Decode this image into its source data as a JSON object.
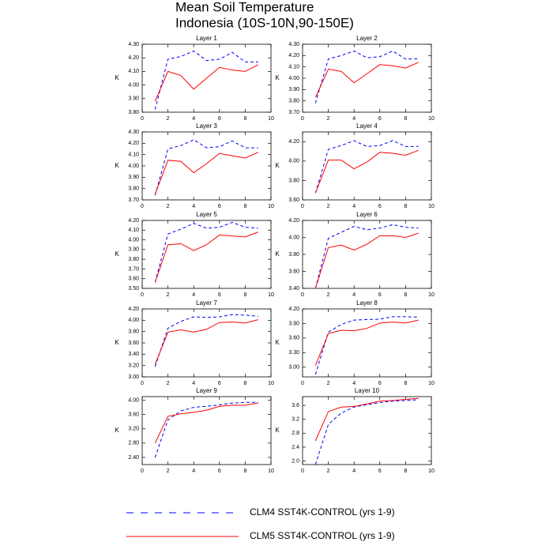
{
  "title": [
    "Mean Soil Temperature",
    "Indonesia (10S-10N,90-150E)"
  ],
  "legend": [
    {
      "name": "CLM4 SST4K-CONTROL (yrs 1-9)",
      "color": "#0000ff",
      "dash": true
    },
    {
      "name": "CLM5 SST4K-CONTROL (yrs 1-9)",
      "color": "#ff0000",
      "dash": false
    }
  ],
  "chart_data": [
    {
      "type": "line",
      "title": "Layer 1",
      "ylabel": "K",
      "x": [
        1,
        2,
        3,
        4,
        5,
        6,
        7,
        8,
        9
      ],
      "xlim": [
        0,
        10
      ],
      "xticks": [
        0,
        2,
        4,
        6,
        8,
        10
      ],
      "ylim": [
        3.8,
        4.3
      ],
      "yticks": [
        {
          "value": 3.8,
          "label": "3.80"
        },
        {
          "value": 3.9,
          "label": "3.90"
        },
        {
          "value": 4.0,
          "label": "4.00"
        },
        {
          "value": 4.1,
          "label": "4.10"
        },
        {
          "value": 4.2,
          "label": "4.20"
        },
        {
          "value": 4.3,
          "label": "4.30"
        }
      ],
      "series": [
        {
          "values": [
            3.82,
            4.19,
            4.21,
            4.25,
            4.18,
            4.19,
            4.24,
            4.17,
            4.17
          ]
        },
        {
          "values": [
            3.88,
            4.1,
            4.07,
            3.97,
            4.05,
            4.13,
            4.11,
            4.1,
            4.15
          ]
        }
      ]
    },
    {
      "type": "line",
      "title": "Layer 2",
      "ylabel": "K",
      "x": [
        1,
        2,
        3,
        4,
        5,
        6,
        7,
        8,
        9
      ],
      "xlim": [
        0,
        10
      ],
      "xticks": [
        0,
        2,
        4,
        6,
        8,
        10
      ],
      "ylim": [
        3.7,
        4.3
      ],
      "yticks": [
        {
          "value": 3.7,
          "label": "3.70"
        },
        {
          "value": 3.8,
          "label": "3.80"
        },
        {
          "value": 3.9,
          "label": "3.90"
        },
        {
          "value": 4.0,
          "label": "4.00"
        },
        {
          "value": 4.1,
          "label": "4.10"
        },
        {
          "value": 4.2,
          "label": "4.20"
        },
        {
          "value": 4.3,
          "label": "4.30"
        }
      ],
      "series": [
        {
          "values": [
            3.78,
            4.17,
            4.2,
            4.24,
            4.18,
            4.19,
            4.24,
            4.17,
            4.17
          ]
        },
        {
          "values": [
            3.83,
            4.08,
            4.06,
            3.96,
            4.04,
            4.12,
            4.11,
            4.09,
            4.14
          ]
        }
      ]
    },
    {
      "type": "line",
      "title": "Layer 3",
      "ylabel": "K",
      "x": [
        1,
        2,
        3,
        4,
        5,
        6,
        7,
        8,
        9
      ],
      "xlim": [
        0,
        10
      ],
      "xticks": [
        0,
        2,
        4,
        6,
        8,
        10
      ],
      "ylim": [
        3.7,
        4.3
      ],
      "yticks": [
        {
          "value": 3.7,
          "label": "3.70"
        },
        {
          "value": 3.8,
          "label": "3.80"
        },
        {
          "value": 3.9,
          "label": "3.90"
        },
        {
          "value": 4.0,
          "label": "4.00"
        },
        {
          "value": 4.1,
          "label": "4.10"
        },
        {
          "value": 4.2,
          "label": "4.20"
        },
        {
          "value": 4.3,
          "label": "4.30"
        }
      ],
      "series": [
        {
          "values": [
            3.74,
            4.15,
            4.18,
            4.23,
            4.16,
            4.17,
            4.22,
            4.16,
            4.16
          ]
        },
        {
          "values": [
            3.75,
            4.05,
            4.04,
            3.94,
            4.02,
            4.11,
            4.09,
            4.07,
            4.12
          ]
        }
      ]
    },
    {
      "type": "line",
      "title": "Layer 4",
      "ylabel": "K",
      "x": [
        1,
        2,
        3,
        4,
        5,
        6,
        7,
        8,
        9
      ],
      "xlim": [
        0,
        10
      ],
      "xticks": [
        0,
        2,
        4,
        6,
        8,
        10
      ],
      "ylim": [
        3.6,
        4.3
      ],
      "yticks": [
        {
          "value": 3.6,
          "label": "3.60"
        },
        {
          "value": 3.8,
          "label": "3.80"
        },
        {
          "value": 4.0,
          "label": "4.00"
        },
        {
          "value": 4.2,
          "label": "4.20"
        }
      ],
      "series": [
        {
          "values": [
            3.67,
            4.12,
            4.16,
            4.21,
            4.15,
            4.16,
            4.21,
            4.15,
            4.15
          ]
        },
        {
          "values": [
            3.67,
            4.01,
            4.01,
            3.92,
            3.99,
            4.09,
            4.08,
            4.06,
            4.11
          ]
        }
      ]
    },
    {
      "type": "line",
      "title": "Layer 5",
      "ylabel": "K",
      "x": [
        1,
        2,
        3,
        4,
        5,
        6,
        7,
        8,
        9
      ],
      "xlim": [
        0,
        10
      ],
      "xticks": [
        0,
        2,
        4,
        6,
        8,
        10
      ],
      "ylim": [
        3.5,
        4.2
      ],
      "yticks": [
        {
          "value": 3.5,
          "label": "3.50"
        },
        {
          "value": 3.6,
          "label": "3.60"
        },
        {
          "value": 3.7,
          "label": "3.70"
        },
        {
          "value": 3.8,
          "label": "3.80"
        },
        {
          "value": 3.9,
          "label": "3.90"
        },
        {
          "value": 4.0,
          "label": "4.00"
        },
        {
          "value": 4.1,
          "label": "4.10"
        },
        {
          "value": 4.2,
          "label": "4.20"
        }
      ],
      "series": [
        {
          "values": [
            3.56,
            4.06,
            4.11,
            4.17,
            4.12,
            4.13,
            4.18,
            4.13,
            4.12
          ]
        },
        {
          "values": [
            3.56,
            3.95,
            3.96,
            3.89,
            3.95,
            4.05,
            4.04,
            4.03,
            4.08
          ]
        }
      ]
    },
    {
      "type": "line",
      "title": "Layer 6",
      "ylabel": "K",
      "x": [
        1,
        2,
        3,
        4,
        5,
        6,
        7,
        8,
        9
      ],
      "xlim": [
        0,
        10
      ],
      "xticks": [
        0,
        2,
        4,
        6,
        8,
        10
      ],
      "ylim": [
        3.4,
        4.2
      ],
      "yticks": [
        {
          "value": 3.4,
          "label": "3.40"
        },
        {
          "value": 3.6,
          "label": "3.60"
        },
        {
          "value": 3.8,
          "label": "3.80"
        },
        {
          "value": 4.0,
          "label": "4.00"
        },
        {
          "value": 4.2,
          "label": "4.20"
        }
      ],
      "series": [
        {
          "values": [
            3.4,
            3.99,
            4.06,
            4.13,
            4.09,
            4.11,
            4.15,
            4.12,
            4.11
          ]
        },
        {
          "values": [
            3.4,
            3.88,
            3.91,
            3.85,
            3.92,
            4.02,
            4.02,
            4.0,
            4.05
          ]
        }
      ]
    },
    {
      "type": "line",
      "title": "Layer 7",
      "ylabel": "K",
      "x": [
        1,
        2,
        3,
        4,
        5,
        6,
        7,
        8,
        9
      ],
      "xlim": [
        0,
        10
      ],
      "xticks": [
        0,
        2,
        4,
        6,
        8,
        10
      ],
      "ylim": [
        3.0,
        4.2
      ],
      "yticks": [
        {
          "value": 3.0,
          "label": "3.00"
        },
        {
          "value": 3.2,
          "label": "3.20"
        },
        {
          "value": 3.4,
          "label": "3.40"
        },
        {
          "value": 3.6,
          "label": "3.60"
        },
        {
          "value": 3.8,
          "label": "3.80"
        },
        {
          "value": 4.0,
          "label": "4.00"
        },
        {
          "value": 4.2,
          "label": "4.20"
        }
      ],
      "series": [
        {
          "values": [
            3.18,
            3.86,
            3.98,
            4.06,
            4.05,
            4.06,
            4.1,
            4.09,
            4.07
          ]
        },
        {
          "values": [
            3.22,
            3.79,
            3.83,
            3.79,
            3.84,
            3.96,
            3.97,
            3.95,
            4.01
          ]
        }
      ]
    },
    {
      "type": "line",
      "title": "Layer 8",
      "ylabel": "K",
      "x": [
        1,
        2,
        3,
        4,
        5,
        6,
        7,
        8,
        9
      ],
      "xlim": [
        0,
        10
      ],
      "xticks": [
        0,
        2,
        4,
        6,
        8,
        10
      ],
      "ylim": [
        2.8,
        4.2
      ],
      "yticks": [
        {
          "value": 3.0,
          "label": "3.00"
        },
        {
          "value": 3.3,
          "label": "3.30"
        },
        {
          "value": 3.6,
          "label": "3.60"
        },
        {
          "value": 3.9,
          "label": "3.90"
        },
        {
          "value": 4.2,
          "label": "4.20"
        }
      ],
      "series": [
        {
          "values": [
            2.85,
            3.72,
            3.88,
            3.97,
            3.98,
            3.99,
            4.04,
            4.04,
            4.03
          ]
        },
        {
          "values": [
            3.03,
            3.69,
            3.76,
            3.75,
            3.8,
            3.91,
            3.93,
            3.91,
            3.97
          ]
        }
      ]
    },
    {
      "type": "line",
      "title": "Layer 9",
      "ylabel": "K",
      "x": [
        1,
        2,
        3,
        4,
        5,
        6,
        7,
        8,
        9
      ],
      "xlim": [
        0,
        10
      ],
      "xticks": [
        0,
        2,
        4,
        6,
        8,
        10
      ],
      "ylim": [
        2.2,
        4.1
      ],
      "yticks": [
        {
          "value": 2.4,
          "label": "2.40"
        },
        {
          "value": 2.8,
          "label": "2.80"
        },
        {
          "value": 3.2,
          "label": "3.20"
        },
        {
          "value": 3.6,
          "label": "3.60"
        },
        {
          "value": 4.0,
          "label": "4.00"
        }
      ],
      "series": [
        {
          "values": [
            2.4,
            3.45,
            3.7,
            3.8,
            3.83,
            3.87,
            3.92,
            3.94,
            3.94
          ]
        },
        {
          "values": [
            2.8,
            3.55,
            3.62,
            3.66,
            3.72,
            3.83,
            3.86,
            3.86,
            3.92
          ]
        }
      ]
    },
    {
      "type": "line",
      "title": "Layer 10",
      "ylabel": "K",
      "x": [
        1,
        2,
        3,
        4,
        5,
        6,
        7,
        8,
        9
      ],
      "xlim": [
        0,
        10
      ],
      "xticks": [
        0,
        2,
        4,
        6,
        8,
        10
      ],
      "ylim": [
        1.9,
        3.85
      ],
      "yticks": [
        {
          "value": 2.0,
          "label": "2.0"
        },
        {
          "value": 2.4,
          "label": "2.4"
        },
        {
          "value": 2.8,
          "label": "2.8"
        },
        {
          "value": 3.2,
          "label": "3.2"
        },
        {
          "value": 3.6,
          "label": "3.6"
        }
      ],
      "series": [
        {
          "values": [
            1.9,
            3.05,
            3.38,
            3.55,
            3.62,
            3.68,
            3.72,
            3.74,
            3.76
          ]
        },
        {
          "values": [
            2.58,
            3.42,
            3.55,
            3.57,
            3.64,
            3.72,
            3.74,
            3.77,
            3.8
          ]
        }
      ]
    }
  ]
}
